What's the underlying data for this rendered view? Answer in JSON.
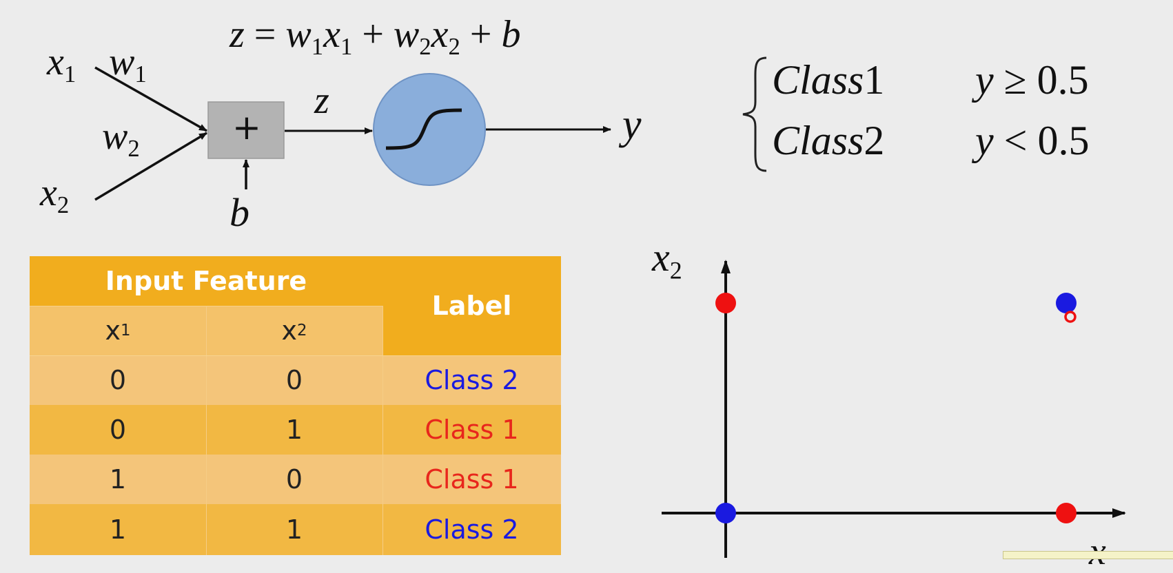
{
  "formula": {
    "text_parts": [
      "z",
      " = ",
      "w",
      "1",
      "x",
      "1",
      " + ",
      "w",
      "2",
      "x",
      "2",
      " + ",
      "b"
    ]
  },
  "neuron": {
    "input_x1": "x",
    "input_x1_sub": "1",
    "weight_w1": "w",
    "weight_w1_sub": "1",
    "weight_w2": "w",
    "weight_w2_sub": "2",
    "input_x2": "x",
    "input_x2_sub": "2",
    "sum_symbol": "+",
    "bias": "b",
    "z_label": "z",
    "output": "y",
    "colors": {
      "sum_box": "#b3b3b3",
      "activation": "#8aaedb"
    }
  },
  "rule": {
    "rows": [
      {
        "class_name": "Class",
        "class_num": "1",
        "condition_var": "y",
        "condition_op": " ≥ ",
        "condition_val": "0.5"
      },
      {
        "class_name": "Class",
        "class_num": "2",
        "condition_var": "y",
        "condition_op": " < ",
        "condition_val": "0.5"
      }
    ]
  },
  "table": {
    "group_header": "Input Feature",
    "label_header": "Label",
    "col1": {
      "base": "x",
      "sub": "1"
    },
    "col2": {
      "base": "x",
      "sub": "2"
    },
    "rows": [
      {
        "x1": "0",
        "x2": "0",
        "label": "Class 2",
        "label_color": "#1a1ae0"
      },
      {
        "x1": "0",
        "x2": "1",
        "label": "Class 1",
        "label_color": "#e8261c"
      },
      {
        "x1": "1",
        "x2": "0",
        "label": "Class 1",
        "label_color": "#e8261c"
      },
      {
        "x1": "1",
        "x2": "1",
        "label": "Class 2",
        "label_color": "#1a1ae0"
      }
    ],
    "colors": {
      "header": "#f1ad1e",
      "row_light": "#f4c57a",
      "row_dark": "#f2b843"
    }
  },
  "chart_data": {
    "type": "scatter",
    "ylabel": "x",
    "ylabel_sub": "2",
    "xlabel": "x",
    "points": [
      {
        "x": 0,
        "y": 0,
        "color": "#1a1ae0"
      },
      {
        "x": 0,
        "y": 1,
        "color": "#ee1111"
      },
      {
        "x": 1,
        "y": 0,
        "color": "#ee1111"
      },
      {
        "x": 1,
        "y": 1,
        "color": "#1a1ae0"
      }
    ],
    "grid": false
  }
}
